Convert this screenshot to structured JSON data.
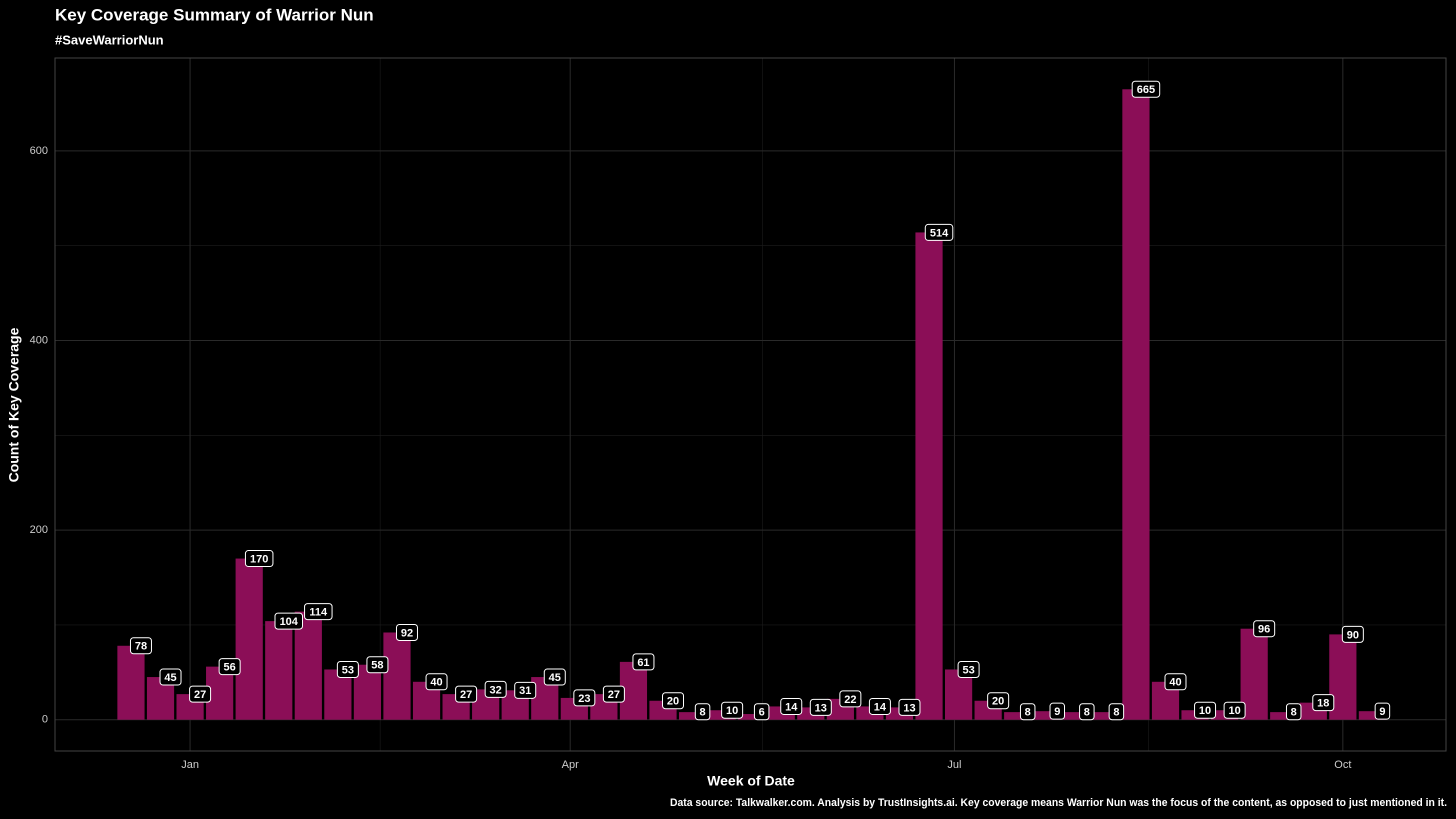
{
  "chart_data": {
    "type": "bar",
    "title": "Key Coverage Summary of Warrior Nun",
    "subtitle": "#SaveWarriorNun",
    "x_label": "Week of Date",
    "y_label": "Count of Key Coverage",
    "caption": "Data source: Talkwalker.com. Analysis by TrustInsights.ai. Key coverage means Warrior Nun was the focus of the content, as opposed to just mentioned in it.",
    "x": [
      0,
      1,
      2,
      3,
      4,
      5,
      6,
      7,
      8,
      9,
      10,
      11,
      12,
      13,
      14,
      15,
      16,
      17,
      18,
      19,
      20,
      21,
      22,
      23,
      24,
      25,
      26,
      27,
      28,
      29,
      30,
      31,
      32,
      33,
      34,
      35,
      36,
      37,
      38,
      39,
      40,
      41,
      42
    ],
    "values": [
      78,
      45,
      27,
      56,
      170,
      104,
      114,
      53,
      58,
      92,
      40,
      27,
      32,
      31,
      45,
      23,
      27,
      61,
      20,
      8,
      10,
      6,
      14,
      13,
      22,
      14,
      13,
      514,
      53,
      20,
      8,
      9,
      8,
      8,
      665,
      40,
      10,
      10,
      96,
      8,
      18,
      90,
      9
    ],
    "color": "#8b0e57",
    "xlim": [
      -2.57,
      44.49
    ],
    "xticks": [
      {
        "value": 2.0,
        "label": "Jan"
      },
      {
        "value": 14.86,
        "label": "Apr"
      },
      {
        "value": 27.86,
        "label": "Jul"
      },
      {
        "value": 41.0,
        "label": "Oct"
      }
    ],
    "ylim": [
      -33,
      698
    ],
    "yticks": [
      0,
      200,
      400,
      600
    ],
    "grid": true
  }
}
